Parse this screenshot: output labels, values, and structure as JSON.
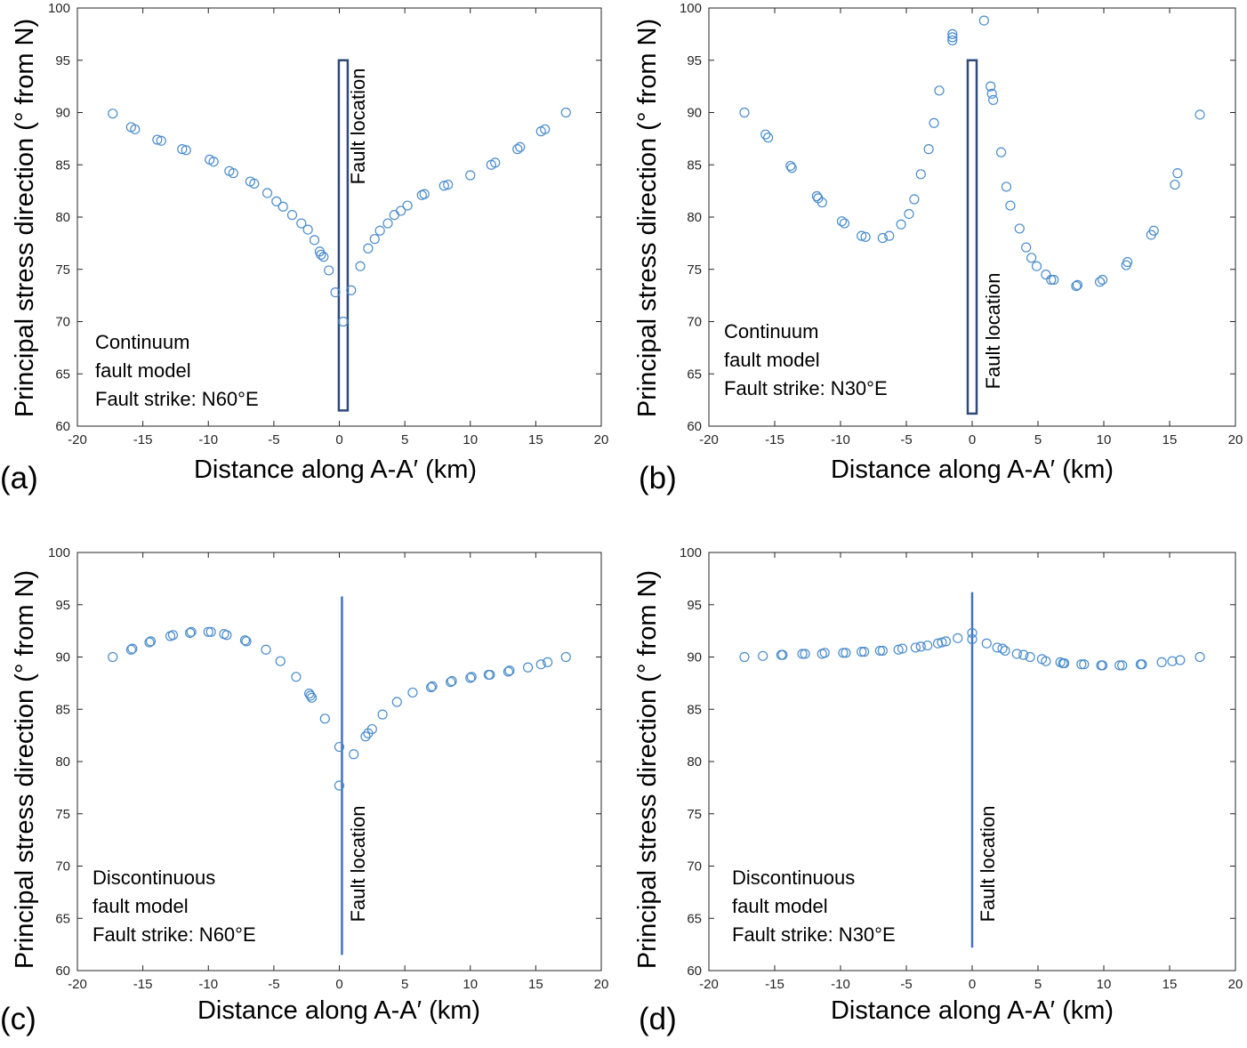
{
  "colors": {
    "marker": "#4a8ccc",
    "fault_continuum": "#2e4a7a",
    "fault_discontinuous": "#4472c4",
    "axis": "#262626"
  },
  "chart_data": [
    {
      "panel": "(a)",
      "type": "scatter",
      "xlabel": "Distance along A-A′ (km)",
      "ylabel": "Principal stress direction (° from N)",
      "xlim": [
        -20,
        20
      ],
      "ylim": [
        60,
        100
      ],
      "xticks": [
        "-20",
        "-15",
        "-10",
        "-5",
        "0",
        "5",
        "10",
        "15",
        "20"
      ],
      "yticks": [
        "60",
        "65",
        "70",
        "75",
        "80",
        "85",
        "90",
        "95",
        "100"
      ],
      "annotation": [
        "Continuum",
        "fault model",
        "Fault strike: N60°E"
      ],
      "fault": {
        "label": "Fault location",
        "style": "rectangle",
        "x": 0.3,
        "y_range": [
          61.5,
          95
        ]
      },
      "x": [
        -17.3,
        -15.9,
        -15.6,
        -13.9,
        -13.6,
        -12.0,
        -11.7,
        -9.9,
        -9.6,
        -8.4,
        -8.1,
        -6.8,
        -6.5,
        -5.5,
        -4.8,
        -4.3,
        -3.6,
        -2.9,
        -2.4,
        -1.9,
        -1.5,
        -1.4,
        -1.2,
        -0.8,
        -0.3,
        0.3,
        0.9,
        1.6,
        2.2,
        2.7,
        3.1,
        3.7,
        4.2,
        4.7,
        5.2,
        6.3,
        6.5,
        8.0,
        8.3,
        10.0,
        11.6,
        11.9,
        13.6,
        13.8,
        15.4,
        15.7,
        17.3
      ],
      "y": [
        89.9,
        88.6,
        88.4,
        87.4,
        87.3,
        86.5,
        86.4,
        85.5,
        85.3,
        84.4,
        84.2,
        83.4,
        83.2,
        82.3,
        81.5,
        81.0,
        80.2,
        79.4,
        78.8,
        77.8,
        76.7,
        76.4,
        76.2,
        74.9,
        72.8,
        70.0,
        73.0,
        75.3,
        77.0,
        77.9,
        78.7,
        79.4,
        80.2,
        80.6,
        81.1,
        82.1,
        82.2,
        83.0,
        83.1,
        84.0,
        85.0,
        85.2,
        86.5,
        86.7,
        88.2,
        88.4,
        90.0
      ]
    },
    {
      "panel": "(b)",
      "type": "scatter",
      "xlabel": "Distance along A-A′ (km)",
      "ylabel": "Principal stress direction (° from N)",
      "xlim": [
        -20,
        20
      ],
      "ylim": [
        60,
        100
      ],
      "xticks": [
        "-20",
        "-15",
        "-10",
        "-5",
        "0",
        "5",
        "10",
        "15",
        "20"
      ],
      "yticks": [
        "60",
        "65",
        "70",
        "75",
        "80",
        "85",
        "90",
        "95",
        "100"
      ],
      "annotation": [
        "Continuum",
        "fault model",
        "Fault strike: N30°E"
      ],
      "fault": {
        "label": "Fault location",
        "style": "rectangle",
        "x": 0,
        "y_range": [
          61.2,
          95
        ]
      },
      "x": [
        -17.3,
        -15.7,
        -15.5,
        -13.8,
        -13.7,
        -11.8,
        -11.7,
        -11.4,
        -9.9,
        -9.7,
        -8.4,
        -8.1,
        -6.8,
        -6.3,
        -5.4,
        -4.8,
        -4.4,
        -3.9,
        -3.3,
        -2.9,
        -2.5,
        -1.5,
        -1.5,
        -1.5,
        0.9,
        1.4,
        1.5,
        1.6,
        2.2,
        2.6,
        2.9,
        3.6,
        4.1,
        4.5,
        4.9,
        5.6,
        6.0,
        6.2,
        7.9,
        8.0,
        9.7,
        9.9,
        11.7,
        11.8,
        13.6,
        13.8,
        15.4,
        15.6,
        17.3
      ],
      "y": [
        90.0,
        87.9,
        87.6,
        84.9,
        84.7,
        82.0,
        81.8,
        81.4,
        79.6,
        79.4,
        78.2,
        78.1,
        78.0,
        78.2,
        79.3,
        80.3,
        81.7,
        84.1,
        86.5,
        89.0,
        92.1,
        96.9,
        97.2,
        97.5,
        98.8,
        92.5,
        91.8,
        91.2,
        86.2,
        82.9,
        81.1,
        78.9,
        77.1,
        76.1,
        75.3,
        74.5,
        74.0,
        74.0,
        73.4,
        73.5,
        73.8,
        74.0,
        75.4,
        75.7,
        78.3,
        78.7,
        83.1,
        84.2,
        89.8
      ]
    },
    {
      "panel": "(c)",
      "type": "scatter",
      "xlabel": "Distance along A-A′ (km)",
      "ylabel": "Principal stress direction (° from N)",
      "xlim": [
        -20,
        20
      ],
      "ylim": [
        60,
        100
      ],
      "xticks": [
        "-20",
        "-15",
        "-10",
        "-5",
        "0",
        "5",
        "10",
        "15",
        "20"
      ],
      "yticks": [
        "60",
        "65",
        "70",
        "75",
        "80",
        "85",
        "90",
        "95",
        "100"
      ],
      "annotation": [
        "Discontinuous",
        "fault model",
        "Fault strike: N60°E"
      ],
      "fault": {
        "label": "Fault location",
        "style": "line",
        "x": 0.2,
        "y_range": [
          61.5,
          95.8
        ]
      },
      "x": [
        -17.3,
        -15.9,
        -15.8,
        -14.5,
        -14.4,
        -12.9,
        -12.7,
        -11.4,
        -11.3,
        -10.0,
        -9.8,
        -8.8,
        -8.6,
        -7.2,
        -7.1,
        -5.6,
        -4.5,
        -3.3,
        -2.3,
        -2.2,
        -2.1,
        -1.1,
        0.0,
        0.0,
        1.1,
        2.0,
        2.2,
        2.5,
        3.3,
        4.4,
        5.6,
        7.0,
        7.1,
        8.5,
        8.6,
        10.0,
        10.1,
        11.4,
        11.5,
        12.9,
        13.0,
        14.4,
        15.4,
        15.9,
        17.3
      ],
      "y": [
        90.0,
        90.7,
        90.8,
        91.4,
        91.5,
        92.0,
        92.1,
        92.3,
        92.4,
        92.4,
        92.4,
        92.2,
        92.1,
        91.6,
        91.5,
        90.7,
        89.6,
        88.1,
        86.5,
        86.3,
        86.1,
        84.1,
        81.4,
        77.7,
        80.7,
        82.4,
        82.7,
        83.1,
        84.5,
        85.7,
        86.6,
        87.1,
        87.2,
        87.6,
        87.7,
        88.0,
        88.1,
        88.3,
        88.3,
        88.6,
        88.7,
        89.0,
        89.3,
        89.5,
        90.0
      ]
    },
    {
      "panel": "(d)",
      "type": "scatter",
      "xlabel": "Distance along A-A′ (km)",
      "ylabel": "Principal stress direction (° from N)",
      "xlim": [
        -20,
        20
      ],
      "ylim": [
        60,
        100
      ],
      "xticks": [
        "-20",
        "-15",
        "-10",
        "-5",
        "0",
        "5",
        "10",
        "15",
        "20"
      ],
      "yticks": [
        "60",
        "65",
        "70",
        "75",
        "80",
        "85",
        "90",
        "95",
        "100"
      ],
      "annotation": [
        "Discontinuous",
        "fault model",
        "Fault strike: N30°E"
      ],
      "fault": {
        "label": "Fault location",
        "style": "line",
        "x": 0,
        "y_range": [
          62.2,
          96.2
        ]
      },
      "x": [
        -17.3,
        -15.9,
        -14.5,
        -14.4,
        -12.9,
        -12.7,
        -11.4,
        -11.2,
        -9.8,
        -9.6,
        -8.4,
        -8.2,
        -7.0,
        -6.8,
        -5.6,
        -5.3,
        -4.3,
        -3.9,
        -3.4,
        -2.6,
        -2.3,
        -2.0,
        -1.1,
        0.0,
        0.0,
        1.1,
        1.9,
        2.3,
        2.5,
        3.4,
        3.9,
        4.4,
        5.3,
        5.6,
        6.7,
        6.9,
        7.0,
        8.3,
        8.5,
        9.8,
        9.9,
        11.2,
        11.4,
        12.8,
        12.9,
        14.4,
        15.2,
        15.8,
        17.3
      ],
      "y": [
        90.0,
        90.1,
        90.2,
        90.2,
        90.3,
        90.3,
        90.3,
        90.4,
        90.4,
        90.4,
        90.5,
        90.5,
        90.6,
        90.6,
        90.7,
        90.8,
        90.9,
        91.0,
        91.1,
        91.3,
        91.4,
        91.5,
        91.8,
        92.3,
        91.7,
        91.3,
        90.9,
        90.8,
        90.6,
        90.3,
        90.2,
        90.0,
        89.8,
        89.6,
        89.5,
        89.4,
        89.4,
        89.3,
        89.3,
        89.2,
        89.2,
        89.2,
        89.2,
        89.3,
        89.3,
        89.5,
        89.6,
        89.7,
        90.0
      ]
    }
  ]
}
